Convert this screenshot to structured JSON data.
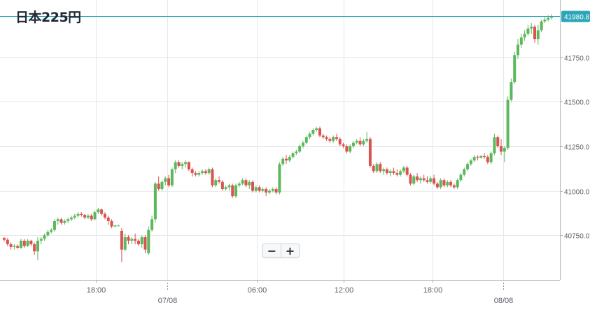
{
  "title": "日本225円",
  "zoom_controls": {
    "zoom_out_label": "−",
    "zoom_in_label": "+"
  },
  "colors": {
    "up": "#5cb85c",
    "down": "#d9534f",
    "grid": "#e6e8ea",
    "axis": "#b0b4b8",
    "price_line": "#2aa6b8",
    "text": "#5a6066"
  },
  "chart_data": {
    "type": "candlestick",
    "title": "日本225円",
    "current_price": 41980.8,
    "y_ticks": [
      40750,
      41000,
      41250,
      41500,
      41750
    ],
    "y_tick_labels": [
      "40750.0",
      "41000.0",
      "41250.0",
      "41500.0",
      "41750.0"
    ],
    "ylim": [
      40500,
      42070
    ],
    "x_ticks": [
      {
        "label": "18:00",
        "day_boundary": false
      },
      {
        "label": "07/08",
        "day_boundary": true
      },
      {
        "label": "06:00",
        "day_boundary": false
      },
      {
        "label": "12:00",
        "day_boundary": false
      },
      {
        "label": "18:00",
        "day_boundary": false
      },
      {
        "label": "08/08",
        "day_boundary": true
      }
    ],
    "grid": true,
    "series": [
      {
        "candles": [
          [
            40735,
            40740,
            40715,
            40725
          ],
          [
            40725,
            40735,
            40690,
            40700
          ],
          [
            40700,
            40710,
            40670,
            40685
          ],
          [
            40685,
            40700,
            40670,
            40690
          ],
          [
            40690,
            40700,
            40675,
            40680
          ],
          [
            40680,
            40730,
            40675,
            40720
          ],
          [
            40720,
            40730,
            40680,
            40690
          ],
          [
            40690,
            40730,
            40685,
            40720
          ],
          [
            40720,
            40725,
            40690,
            40700
          ],
          [
            40700,
            40710,
            40640,
            40660
          ],
          [
            40660,
            40740,
            40610,
            40720
          ],
          [
            40720,
            40740,
            40700,
            40730
          ],
          [
            40730,
            40760,
            40720,
            40750
          ],
          [
            40750,
            40780,
            40740,
            40770
          ],
          [
            40770,
            40790,
            40760,
            40780
          ],
          [
            40780,
            40840,
            40770,
            40830
          ],
          [
            40830,
            40850,
            40810,
            40840
          ],
          [
            40840,
            40850,
            40810,
            40820
          ],
          [
            40820,
            40840,
            40810,
            40830
          ],
          [
            40830,
            40850,
            40820,
            40840
          ],
          [
            40840,
            40860,
            40830,
            40850
          ],
          [
            40850,
            40870,
            40840,
            40860
          ],
          [
            40860,
            40880,
            40850,
            40870
          ],
          [
            40870,
            40880,
            40855,
            40865
          ],
          [
            40865,
            40870,
            40840,
            40850
          ],
          [
            40850,
            40870,
            40840,
            40860
          ],
          [
            40860,
            40870,
            40830,
            40840
          ],
          [
            40840,
            40890,
            40835,
            40880
          ],
          [
            40880,
            40905,
            40870,
            40895
          ],
          [
            40895,
            40900,
            40860,
            40870
          ],
          [
            40870,
            40880,
            40840,
            40850
          ],
          [
            40850,
            40860,
            40810,
            40830
          ],
          [
            40830,
            40840,
            40790,
            40800
          ],
          [
            40800,
            40810,
            40795,
            40805
          ],
          [
            40805,
            40810,
            40800,
            40805
          ],
          [
            40775,
            40790,
            40600,
            40670
          ],
          [
            40670,
            40760,
            40660,
            40740
          ],
          [
            40740,
            40750,
            40700,
            40720
          ],
          [
            40720,
            40740,
            40700,
            40730
          ],
          [
            40730,
            40760,
            40700,
            40720
          ],
          [
            40720,
            40730,
            40690,
            40700
          ],
          [
            40700,
            40750,
            40680,
            40740
          ],
          [
            40740,
            40750,
            40650,
            40670
          ],
          [
            40650,
            40800,
            40640,
            40780
          ],
          [
            40780,
            40860,
            40770,
            40840
          ],
          [
            40840,
            41050,
            40820,
            41040
          ],
          [
            41040,
            41080,
            41000,
            41010
          ],
          [
            41010,
            41060,
            41000,
            41050
          ],
          [
            41050,
            41080,
            41030,
            41070
          ],
          [
            41070,
            41090,
            41020,
            41030
          ],
          [
            41030,
            41130,
            41020,
            41120
          ],
          [
            41120,
            41170,
            41100,
            41160
          ],
          [
            41160,
            41170,
            41130,
            41140
          ],
          [
            41140,
            41160,
            41120,
            41150
          ],
          [
            41150,
            41170,
            41130,
            41160
          ],
          [
            41160,
            41165,
            41110,
            41120
          ],
          [
            41120,
            41130,
            41080,
            41100
          ],
          [
            41100,
            41110,
            41080,
            41090
          ],
          [
            41090,
            41110,
            41080,
            41100
          ],
          [
            41100,
            41120,
            41090,
            41110
          ],
          [
            41110,
            41120,
            41090,
            41100
          ],
          [
            41100,
            41130,
            41090,
            41120
          ],
          [
            41120,
            41130,
            41020,
            41030
          ],
          [
            41030,
            41070,
            41020,
            41060
          ],
          [
            41060,
            41080,
            41040,
            41050
          ],
          [
            41050,
            41060,
            41000,
            41010
          ],
          [
            41010,
            41030,
            41000,
            41020
          ],
          [
            41020,
            41040,
            41000,
            41030
          ],
          [
            41030,
            41040,
            40960,
            40970
          ],
          [
            40970,
            41040,
            40960,
            41030
          ],
          [
            41030,
            41050,
            41020,
            41040
          ],
          [
            41040,
            41070,
            41030,
            41060
          ],
          [
            41060,
            41070,
            41020,
            41030
          ],
          [
            41030,
            41060,
            41010,
            41050
          ],
          [
            41050,
            41060,
            40990,
            41000
          ],
          [
            41000,
            41030,
            40990,
            41020
          ],
          [
            41020,
            41030,
            40990,
            41000
          ],
          [
            41000,
            41020,
            40990,
            41010
          ],
          [
            41010,
            41020,
            40970,
            40990
          ],
          [
            40990,
            41010,
            40980,
            41000
          ],
          [
            41000,
            41020,
            40990,
            41010
          ],
          [
            41010,
            41020,
            40980,
            40990
          ],
          [
            40990,
            41160,
            40980,
            41150
          ],
          [
            41150,
            41190,
            41140,
            41180
          ],
          [
            41180,
            41200,
            41150,
            41170
          ],
          [
            41170,
            41200,
            41160,
            41190
          ],
          [
            41190,
            41220,
            41180,
            41210
          ],
          [
            41210,
            41230,
            41200,
            41220
          ],
          [
            41220,
            41260,
            41210,
            41250
          ],
          [
            41250,
            41280,
            41240,
            41270
          ],
          [
            41270,
            41310,
            41260,
            41300
          ],
          [
            41300,
            41330,
            41290,
            41320
          ],
          [
            41320,
            41350,
            41310,
            41340
          ],
          [
            41340,
            41360,
            41330,
            41350
          ],
          [
            41350,
            41360,
            41300,
            41310
          ],
          [
            41310,
            41320,
            41290,
            41300
          ],
          [
            41300,
            41310,
            41280,
            41290
          ],
          [
            41290,
            41300,
            41270,
            41280
          ],
          [
            41280,
            41310,
            41270,
            41300
          ],
          [
            41300,
            41320,
            41280,
            41290
          ],
          [
            41290,
            41300,
            41250,
            41260
          ],
          [
            41260,
            41270,
            41240,
            41250
          ],
          [
            41250,
            41260,
            41210,
            41220
          ],
          [
            41220,
            41260,
            41210,
            41250
          ],
          [
            41250,
            41280,
            41240,
            41270
          ],
          [
            41270,
            41290,
            41260,
            41280
          ],
          [
            41280,
            41300,
            41250,
            41260
          ],
          [
            41260,
            41290,
            41250,
            41280
          ],
          [
            41280,
            41330,
            41270,
            41290
          ],
          [
            41290,
            41300,
            41130,
            41140
          ],
          [
            41140,
            41150,
            41100,
            41110
          ],
          [
            41110,
            41160,
            41100,
            41150
          ],
          [
            41150,
            41160,
            41100,
            41110
          ],
          [
            41110,
            41130,
            41090,
            41120
          ],
          [
            41120,
            41130,
            41090,
            41100
          ],
          [
            41100,
            41120,
            41080,
            41110
          ],
          [
            41110,
            41130,
            41090,
            41100
          ],
          [
            41100,
            41120,
            41080,
            41090
          ],
          [
            41090,
            41120,
            41080,
            41110
          ],
          [
            41110,
            41140,
            41100,
            41130
          ],
          [
            41130,
            41140,
            41080,
            41090
          ],
          [
            41090,
            41100,
            41030,
            41040
          ],
          [
            41040,
            41090,
            41030,
            41080
          ],
          [
            41080,
            41100,
            41050,
            41060
          ],
          [
            41060,
            41080,
            41040,
            41070
          ],
          [
            41070,
            41090,
            41050,
            41060
          ],
          [
            41060,
            41080,
            41040,
            41050
          ],
          [
            41050,
            41080,
            41040,
            41070
          ],
          [
            41070,
            41090,
            41030,
            41040
          ],
          [
            41040,
            41050,
            41010,
            41020
          ],
          [
            41020,
            41070,
            41010,
            41060
          ],
          [
            41060,
            41070,
            41020,
            41030
          ],
          [
            41030,
            41060,
            41020,
            41050
          ],
          [
            41050,
            41060,
            41020,
            41030
          ],
          [
            41030,
            41040,
            41010,
            41020
          ],
          [
            41020,
            41070,
            41010,
            41060
          ],
          [
            41060,
            41100,
            41050,
            41090
          ],
          [
            41090,
            41130,
            41080,
            41120
          ],
          [
            41120,
            41160,
            41110,
            41150
          ],
          [
            41150,
            41180,
            41140,
            41170
          ],
          [
            41170,
            41200,
            41160,
            41190
          ],
          [
            41190,
            41200,
            41170,
            41185
          ],
          [
            41185,
            41200,
            41180,
            41195
          ],
          [
            41195,
            41210,
            41180,
            41190
          ],
          [
            41190,
            41200,
            41150,
            41160
          ],
          [
            41160,
            41220,
            41150,
            41210
          ],
          [
            41210,
            41320,
            41200,
            41300
          ],
          [
            41300,
            41310,
            41240,
            41250
          ],
          [
            41250,
            41290,
            41200,
            41220
          ],
          [
            41220,
            41250,
            41160,
            41240
          ],
          [
            41240,
            41530,
            41230,
            41510
          ],
          [
            41510,
            41630,
            41500,
            41610
          ],
          [
            41610,
            41780,
            41600,
            41760
          ],
          [
            41760,
            41850,
            41740,
            41820
          ],
          [
            41820,
            41880,
            41800,
            41860
          ],
          [
            41860,
            41900,
            41840,
            41880
          ],
          [
            41880,
            41930,
            41870,
            41910
          ],
          [
            41910,
            41940,
            41880,
            41920
          ],
          [
            41920,
            41930,
            41830,
            41850
          ],
          [
            41850,
            41930,
            41820,
            41900
          ],
          [
            41900,
            41960,
            41890,
            41950
          ],
          [
            41950,
            41975,
            41940,
            41960
          ],
          [
            41960,
            41985,
            41950,
            41970
          ],
          [
            41970,
            41990,
            41960,
            41980
          ]
        ]
      }
    ]
  }
}
